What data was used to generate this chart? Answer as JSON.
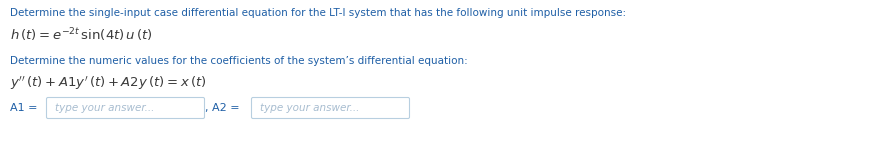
{
  "line1_text": "Determine the single-input case differential equation for the LT-I system that has the following unit impulse response:",
  "line2_math": "$h\\,(t) = e^{-2t}\\,\\sin(4t)\\,u\\,(t)$",
  "line3_text": "Determine the numeric values for the coefficients of the system’s differential equation:",
  "line4_math": "$y''\\,(t) + A1y'\\,(t) + A2y\\,(t) = x\\,(t)$",
  "label_A1": "A1 =",
  "label_A2": ", A2 =",
  "placeholder": "type your answer...",
  "text_color_blue": "#1f5fa6",
  "text_color_dark": "#3a3a3a",
  "text_color_placeholder": "#a8bdd0",
  "bg_color": "#ffffff",
  "box_border_color": "#b8cfe0",
  "fig_width": 8.74,
  "fig_height": 1.51,
  "dpi": 100
}
